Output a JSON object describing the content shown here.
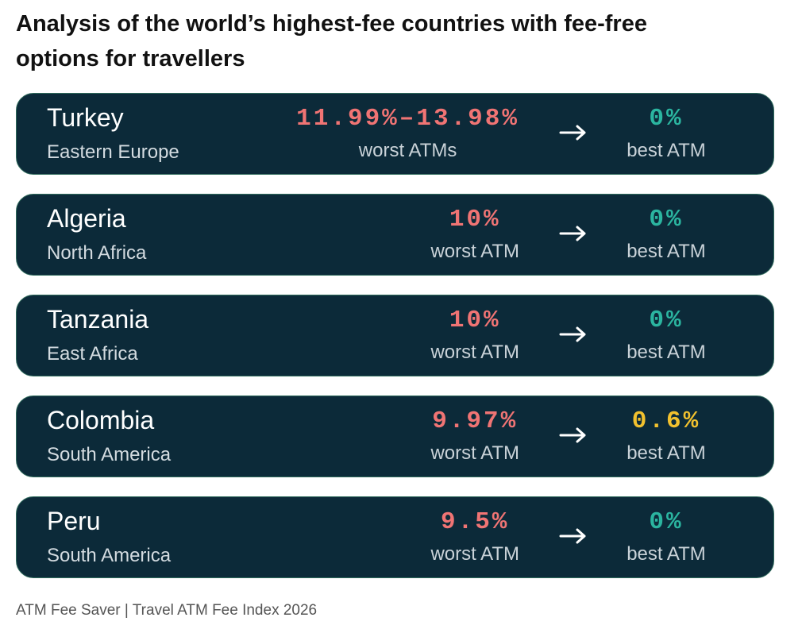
{
  "title": "Analysis of the world’s highest-fee countries with fee-free options for travellers",
  "rows": [
    {
      "country": "Turkey",
      "region": "Eastern Europe",
      "worst": {
        "value": "11.99%–13.98%",
        "label": "worst ATMs"
      },
      "best": {
        "value": "0%",
        "label": "best ATM",
        "color": "#2bb5a0"
      }
    },
    {
      "country": "Algeria",
      "region": "North Africa",
      "worst": {
        "value": "10%",
        "label": "worst ATM"
      },
      "best": {
        "value": "0%",
        "label": "best ATM",
        "color": "#2bb5a0"
      }
    },
    {
      "country": "Tanzania",
      "region": "East Africa",
      "worst": {
        "value": "10%",
        "label": "worst ATM"
      },
      "best": {
        "value": "0%",
        "label": "best ATM",
        "color": "#2bb5a0"
      }
    },
    {
      "country": "Colombia",
      "region": "South America",
      "worst": {
        "value": "9.97%",
        "label": "worst ATM"
      },
      "best": {
        "value": "0.6%",
        "label": "best ATM",
        "color": "#f2c12e"
      }
    },
    {
      "country": "Peru",
      "region": "South America",
      "worst": {
        "value": "9.5%",
        "label": "worst ATM"
      },
      "best": {
        "value": "0%",
        "label": "best ATM",
        "color": "#2bb5a0"
      }
    }
  ],
  "source": "ATM Fee Saver | Travel ATM Fee Index 2026"
}
